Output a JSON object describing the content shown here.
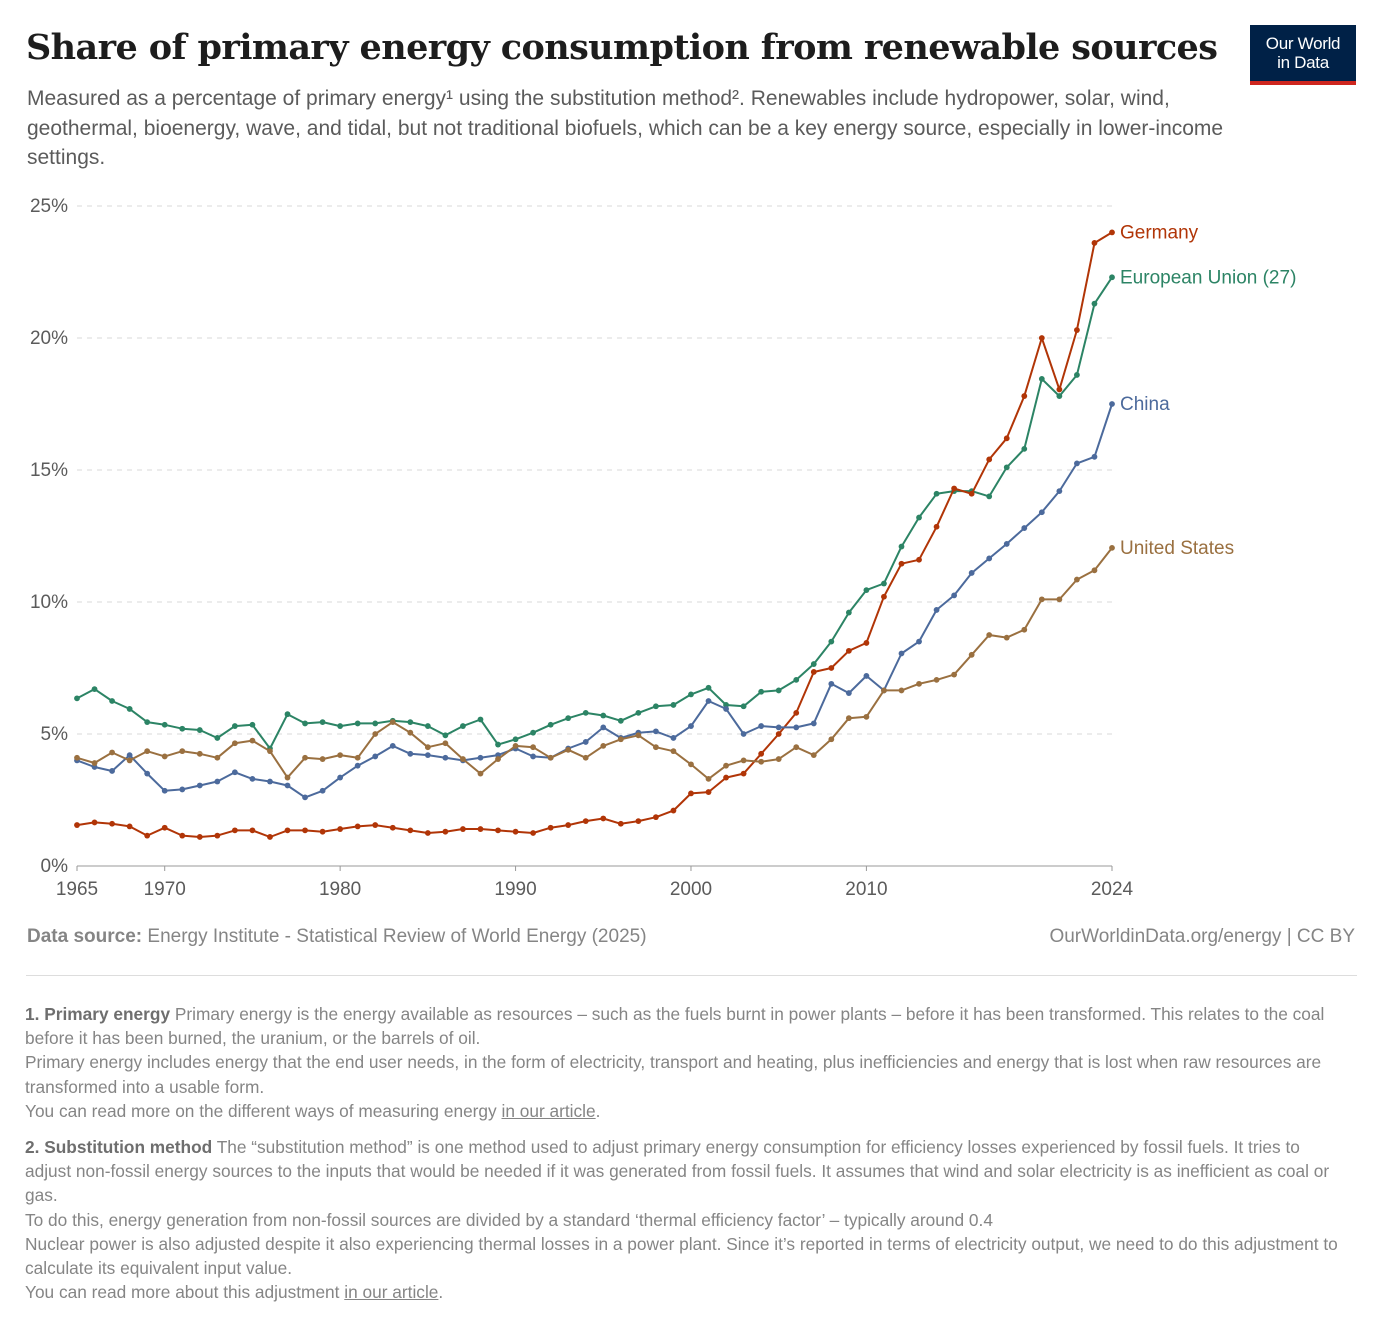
{
  "header": {
    "title": "Share of primary energy consumption from renewable sources",
    "subtitle": "Measured as a percentage of primary energy¹ using the substitution method². Renewables include hydropower, solar, wind, geothermal, bioenergy, wave, and tidal, but not traditional biofuels, which can be a key energy source, especially in lower-income settings."
  },
  "logo": {
    "line1": "Our World",
    "line2": "in Data"
  },
  "chart_data": {
    "type": "line",
    "y_ticks": [
      "0%",
      "5%",
      "10%",
      "15%",
      "20%",
      "25%"
    ],
    "y_tick_values": [
      0,
      5,
      10,
      15,
      20,
      25
    ],
    "ylim": [
      0,
      25
    ],
    "x_ticks": [
      "1965",
      "1970",
      "1980",
      "1990",
      "2000",
      "2010",
      "2024"
    ],
    "x_tick_values": [
      1965,
      1970,
      1980,
      1990,
      2000,
      2010,
      2024
    ],
    "xlim": [
      1965,
      2024
    ],
    "grid": "horizontal dashed",
    "legend": "inline labels at line ends (right)",
    "x": [
      1965,
      1966,
      1967,
      1968,
      1969,
      1970,
      1971,
      1972,
      1973,
      1974,
      1975,
      1976,
      1977,
      1978,
      1979,
      1980,
      1981,
      1982,
      1983,
      1984,
      1985,
      1986,
      1987,
      1988,
      1989,
      1990,
      1991,
      1992,
      1993,
      1994,
      1995,
      1996,
      1997,
      1998,
      1999,
      2000,
      2001,
      2002,
      2003,
      2004,
      2005,
      2006,
      2007,
      2008,
      2009,
      2010,
      2011,
      2012,
      2013,
      2014,
      2015,
      2016,
      2017,
      2018,
      2019,
      2020,
      2021,
      2022,
      2023,
      2024
    ],
    "series": [
      {
        "name": "European Union (27)",
        "color": "#2c8465",
        "values": [
          6.35,
          6.7,
          6.25,
          5.95,
          5.45,
          5.35,
          5.2,
          5.15,
          4.85,
          5.3,
          5.35,
          4.45,
          5.75,
          5.4,
          5.45,
          5.3,
          5.4,
          5.4,
          5.5,
          5.45,
          5.3,
          4.95,
          5.3,
          5.55,
          4.6,
          4.8,
          5.05,
          5.35,
          5.6,
          5.8,
          5.7,
          5.5,
          5.8,
          6.05,
          6.1,
          6.5,
          6.75,
          6.1,
          6.05,
          6.6,
          6.65,
          7.05,
          7.65,
          8.5,
          9.6,
          10.45,
          10.7,
          12.1,
          13.2,
          14.1,
          14.2,
          14.2,
          14.0,
          15.1,
          15.8,
          18.45,
          17.8,
          18.6,
          21.3,
          22.3
        ]
      },
      {
        "name": "Germany",
        "color": "#b13507",
        "values": [
          1.55,
          1.65,
          1.6,
          1.5,
          1.15,
          1.45,
          1.15,
          1.1,
          1.15,
          1.35,
          1.35,
          1.1,
          1.35,
          1.35,
          1.3,
          1.4,
          1.5,
          1.55,
          1.45,
          1.35,
          1.25,
          1.3,
          1.4,
          1.4,
          1.35,
          1.3,
          1.25,
          1.45,
          1.55,
          1.7,
          1.8,
          1.6,
          1.7,
          1.85,
          2.1,
          2.75,
          2.8,
          3.35,
          3.5,
          4.25,
          5.0,
          5.8,
          7.35,
          7.5,
          8.15,
          8.45,
          10.2,
          11.45,
          11.6,
          12.85,
          14.3,
          14.1,
          15.4,
          16.2,
          17.8,
          20.0,
          18.05,
          20.3,
          23.6,
          24.0
        ]
      },
      {
        "name": "China",
        "color": "#4c6a9c",
        "values": [
          4.0,
          3.75,
          3.6,
          4.2,
          3.5,
          2.85,
          2.9,
          3.05,
          3.2,
          3.55,
          3.3,
          3.2,
          3.05,
          2.6,
          2.85,
          3.35,
          3.8,
          4.15,
          4.55,
          4.25,
          4.2,
          4.1,
          4.0,
          4.1,
          4.2,
          4.45,
          4.15,
          4.1,
          4.45,
          4.7,
          5.25,
          4.85,
          5.05,
          5.1,
          4.85,
          5.3,
          6.25,
          5.95,
          5.0,
          5.3,
          5.25,
          5.25,
          5.4,
          6.9,
          6.55,
          7.2,
          6.65,
          8.05,
          8.5,
          9.7,
          10.25,
          11.1,
          11.65,
          12.2,
          12.8,
          13.4,
          14.2,
          15.25,
          15.5,
          17.5
        ]
      },
      {
        "name": "United States",
        "color": "#9a7040",
        "values": [
          4.1,
          3.9,
          4.3,
          4.0,
          4.35,
          4.15,
          4.35,
          4.25,
          4.1,
          4.65,
          4.75,
          4.35,
          3.35,
          4.1,
          4.05,
          4.2,
          4.1,
          5.0,
          5.45,
          5.05,
          4.5,
          4.65,
          4.05,
          3.5,
          4.05,
          4.55,
          4.5,
          4.1,
          4.4,
          4.1,
          4.55,
          4.8,
          4.95,
          4.5,
          4.35,
          3.85,
          3.3,
          3.8,
          4.0,
          3.95,
          4.05,
          4.5,
          4.2,
          4.8,
          5.6,
          5.65,
          6.65,
          6.65,
          6.9,
          7.05,
          7.25,
          8.0,
          8.75,
          8.65,
          8.95,
          10.1,
          10.1,
          10.85,
          11.2,
          12.05
        ]
      }
    ]
  },
  "footer": {
    "source_label": "Data source:",
    "source_text": "Energy Institute - Statistical Review of World Energy (2025)",
    "license": "OurWorldinData.org/energy | CC BY"
  },
  "notes": {
    "n1_title": "1. Primary energy",
    "n1_p1": "Primary energy is the energy available as resources – such as the fuels burnt in power plants – before it has been transformed. This relates to the coal before it has been burned, the uranium, or the barrels of oil.",
    "n1_p2": "Primary energy includes energy that the end user needs, in the form of electricity, transport and heating, plus inefficiencies and energy that is lost when raw resources are transformed into a usable form.",
    "n1_p3_pre": "You can read more on the different ways of measuring energy ",
    "n1_p3_link": "in our article",
    "n1_p3_post": ".",
    "n2_title": "2. Substitution method",
    "n2_p1": "The “substitution method” is one method used to adjust primary energy consumption for efficiency losses experienced by fossil fuels. It tries to adjust non-fossil energy sources to the inputs that would be needed if it was generated from fossil fuels. It assumes that wind and solar electricity is as inefficient as coal or gas.",
    "n2_p2": "To do this, energy generation from non-fossil sources are divided by a standard ‘thermal efficiency factor’ – typically around 0.4",
    "n2_p3": "Nuclear power is also adjusted despite it also experiencing thermal losses in a power plant. Since it’s reported in terms of electricity output, we need to do this adjustment to calculate its equivalent input value.",
    "n2_p4_pre": "You can read more about this adjustment ",
    "n2_p4_link": "in our article",
    "n2_p4_post": "."
  }
}
